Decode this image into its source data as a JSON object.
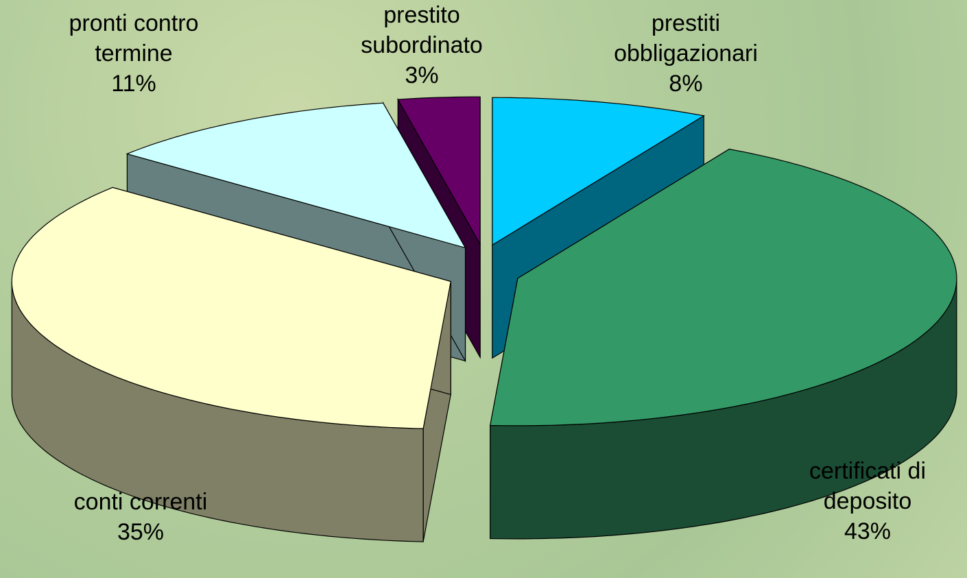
{
  "chart_data": {
    "type": "pie3d",
    "categories": [
      "prestiti obbligazionari",
      "certificati di deposito",
      "conti correnti",
      "pronti contro termine",
      "prestito subordinato"
    ],
    "values": [
      8,
      43,
      35,
      11,
      3
    ],
    "value_labels": [
      "8%",
      "43%",
      "35%",
      "11%",
      "3%"
    ],
    "colors": [
      "#00ccff",
      "#339966",
      "#ffffcc",
      "#ccffff",
      "#660066"
    ],
    "side_colors": [
      "#006680",
      "#1a4d33",
      "#808066",
      "#668080",
      "#330033"
    ]
  }
}
